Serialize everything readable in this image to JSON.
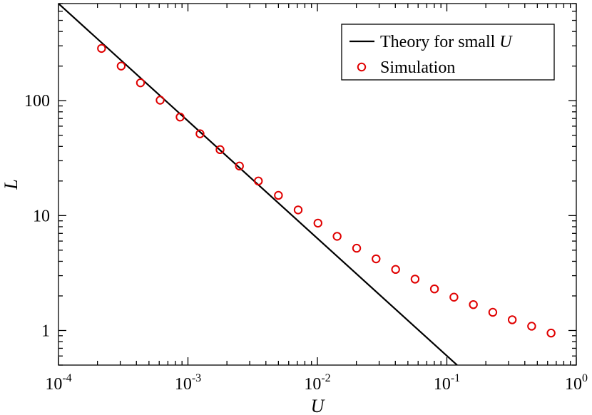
{
  "chart_data": {
    "type": "scatter",
    "xscale": "log",
    "yscale": "log",
    "xlim": [
      0.0001,
      1
    ],
    "ylim": [
      0.5,
      700
    ],
    "xlabel": "U",
    "ylabel": "L",
    "grid": false,
    "legend_position": "top-right",
    "x_ticks": [
      {
        "value": 0.0001,
        "base": "10",
        "exp": "-4"
      },
      {
        "value": 0.001,
        "base": "10",
        "exp": "-3"
      },
      {
        "value": 0.01,
        "base": "10",
        "exp": "-2"
      },
      {
        "value": 0.1,
        "base": "10",
        "exp": "-1"
      },
      {
        "value": 1,
        "base": "10",
        "exp": "0"
      }
    ],
    "y_ticks": [
      {
        "value": 1,
        "label": "1"
      },
      {
        "value": 10,
        "label": "10"
      },
      {
        "value": 100,
        "label": "100"
      }
    ],
    "series": [
      {
        "name": "Theory for small U",
        "kind": "line",
        "color": "#000000",
        "x": [
          0.0001,
          0.12
        ],
        "y": [
          700,
          0.5
        ]
      },
      {
        "name": "Simulation",
        "kind": "markers",
        "marker": "open-circle",
        "color": "#e00000",
        "x": [
          0.000215,
          0.000305,
          0.00043,
          0.00061,
          0.00087,
          0.00124,
          0.00177,
          0.0025,
          0.0035,
          0.005,
          0.0071,
          0.0101,
          0.0142,
          0.0201,
          0.0284,
          0.0402,
          0.0568,
          0.0802,
          0.1134,
          0.1602,
          0.2264,
          0.3199,
          0.4519,
          0.6385
        ],
        "y": [
          285,
          200,
          143,
          101,
          72,
          51.5,
          37.5,
          27,
          20,
          15,
          11.2,
          8.6,
          6.6,
          5.2,
          4.2,
          3.4,
          2.8,
          2.3,
          1.95,
          1.68,
          1.44,
          1.24,
          1.09,
          0.95
        ]
      }
    ]
  },
  "legend": {
    "items": [
      {
        "text": "Theory for small ",
        "var": "U"
      },
      {
        "text": "Simulation",
        "var": ""
      }
    ]
  }
}
